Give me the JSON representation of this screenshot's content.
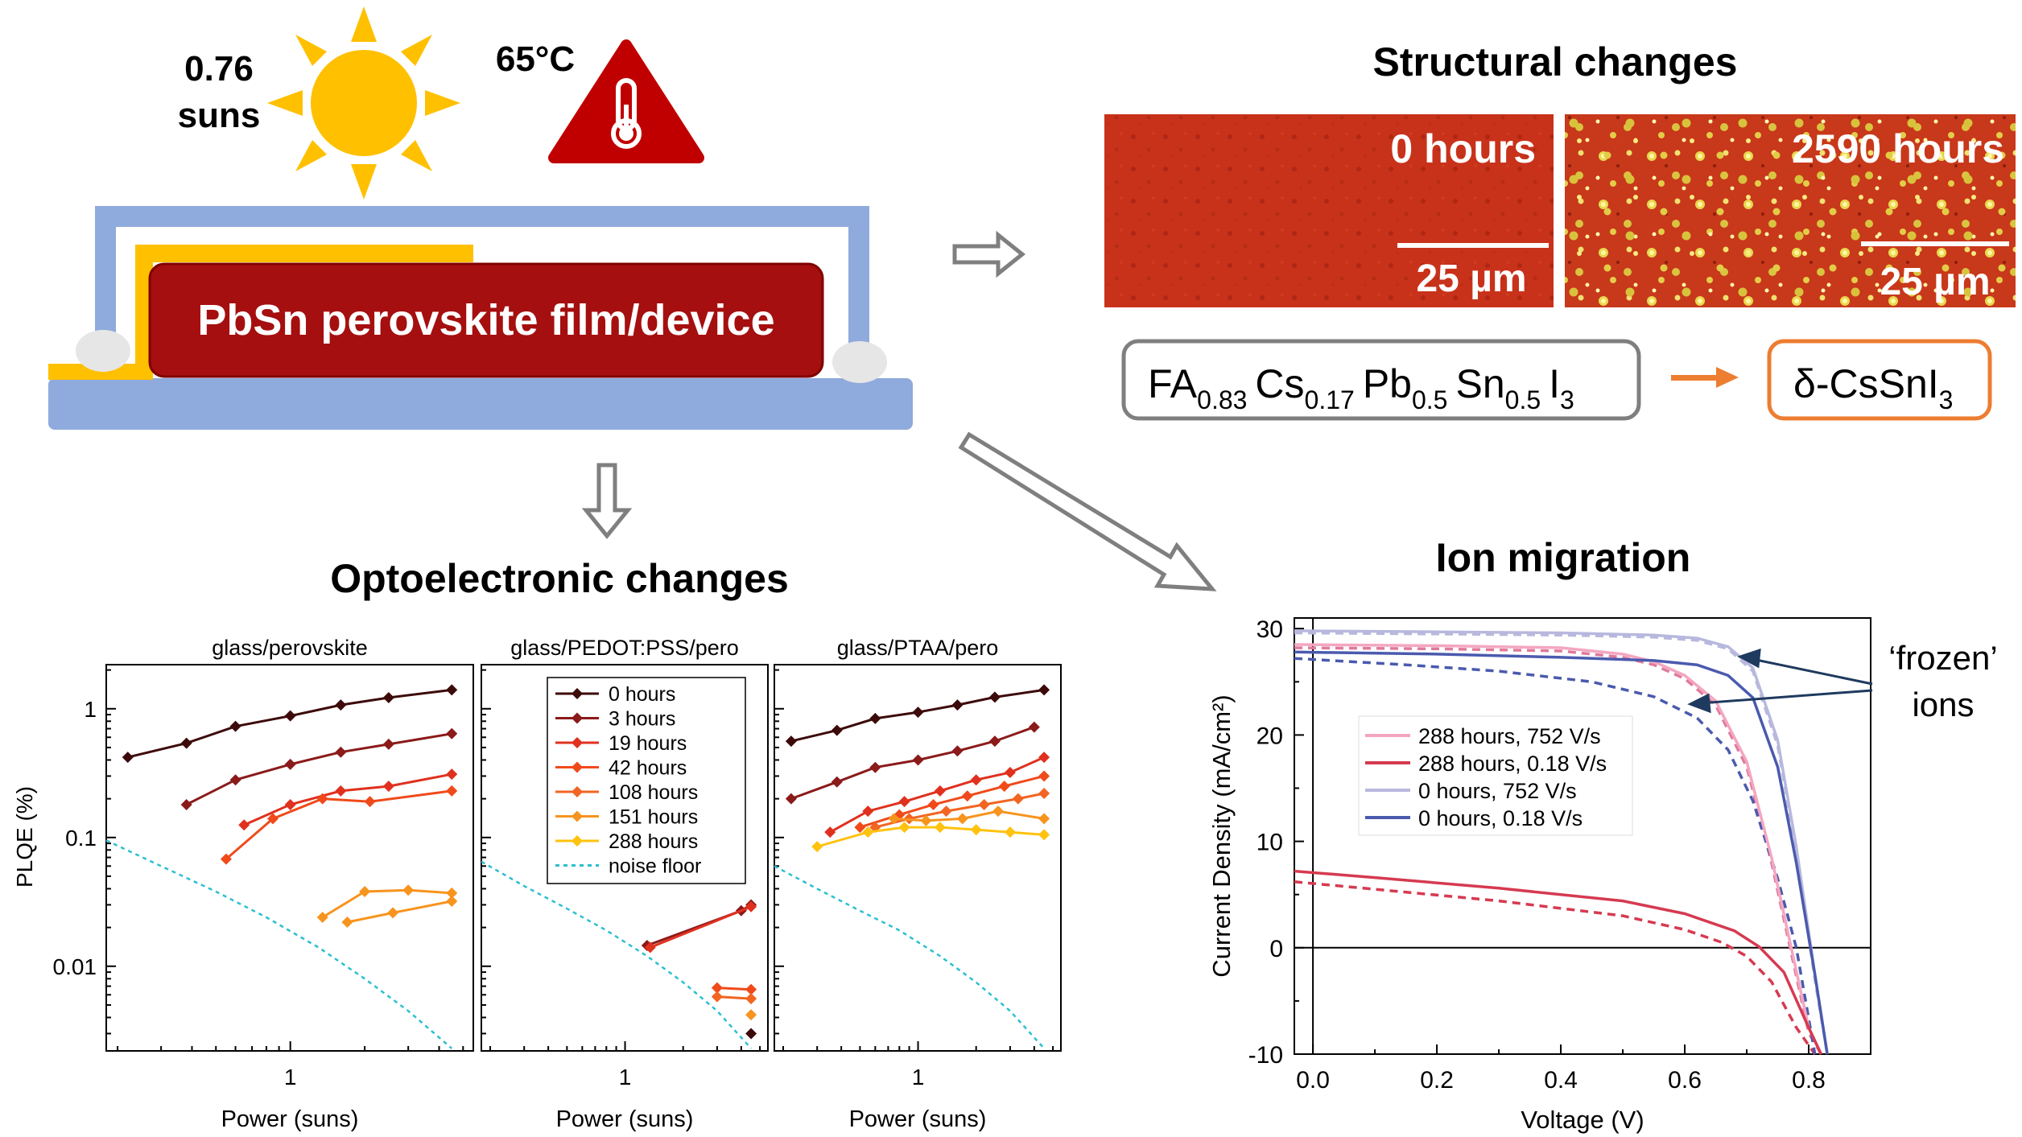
{
  "conditions": {
    "light_value": "0.76",
    "light_unit": "suns",
    "temperature": "65°C",
    "sun_icon": "sun-icon",
    "thermometer_icon": "thermometer-warning-icon"
  },
  "device": {
    "label": "PbSn perovskite film/device"
  },
  "structural": {
    "title": "Structural changes",
    "image_left_label": "0 hours",
    "image_right_label": "2590 hours",
    "scalebar": "25 µm",
    "formula_from": {
      "FA": "FA",
      "FA_sub": "0.83",
      "Cs": "Cs",
      "Cs_sub": "0.17",
      "Pb": "Pb",
      "Pb_sub": "0.5",
      "Sn": "Sn",
      "Sn_sub": "0.5",
      "I": "I",
      "I_sub": "3"
    },
    "formula_to": {
      "pre": "δ-CsSnI",
      "sub": "3"
    },
    "colors": {
      "from_border": "#808080",
      "to_border": "#ED7D31",
      "arrow": "#ED7D31",
      "film": "#C8321A"
    }
  },
  "optoelectronic": {
    "title": "Optoelectronic changes",
    "ylabel": "PLQE (%)",
    "xlabel": "Power (suns)"
  },
  "ion": {
    "title": "Ion migration",
    "annotation_line1": "‘frozen’",
    "annotation_line2": "ions"
  },
  "chart_data": [
    {
      "type": "line",
      "title": "glass/perovskite",
      "xlabel": "Power (suns)",
      "ylabel": "PLQE (%)",
      "xscale": "log",
      "yscale": "log",
      "xlim": [
        0.18,
        5.5
      ],
      "ylim": [
        0.0022,
        2.2
      ],
      "xticks": [
        1
      ],
      "yticks": [
        0.01,
        0.1,
        1
      ],
      "series": [
        {
          "name": "0 hours",
          "color": "#3D0A0A",
          "x": [
            0.22,
            0.38,
            0.6,
            1.0,
            1.6,
            2.5,
            4.5
          ],
          "y": [
            0.42,
            0.54,
            0.73,
            0.88,
            1.07,
            1.22,
            1.4
          ]
        },
        {
          "name": "3 hours",
          "color": "#8B1A1A",
          "x": [
            0.38,
            0.6,
            1.0,
            1.6,
            2.5,
            4.5
          ],
          "y": [
            0.18,
            0.28,
            0.37,
            0.46,
            0.53,
            0.64
          ]
        },
        {
          "name": "19 hours",
          "color": "#E0301E",
          "x": [
            0.65,
            1.0,
            1.6,
            2.5,
            4.5
          ],
          "y": [
            0.125,
            0.18,
            0.23,
            0.25,
            0.31
          ]
        },
        {
          "name": "42 hours",
          "color": "#F04A1A",
          "x": [
            0.55,
            0.85,
            1.35,
            2.1,
            4.5
          ],
          "y": [
            0.068,
            0.14,
            0.2,
            0.19,
            0.23
          ]
        },
        {
          "name": "151 hours",
          "color": "#F7941D",
          "x": [
            1.35,
            2.0,
            3.0,
            4.5
          ],
          "y": [
            0.024,
            0.038,
            0.039,
            0.037
          ]
        },
        {
          "name": "288 hours",
          "color": "#F7941D",
          "x": [
            1.7,
            2.6,
            4.5
          ],
          "y": [
            0.022,
            0.026,
            0.032
          ]
        },
        {
          "name": "noise floor",
          "color": "#2BC0D0",
          "dashed": true,
          "markers": false,
          "x": [
            0.18,
            0.3,
            0.5,
            0.8,
            1.3,
            2.0,
            3.0,
            4.5
          ],
          "y": [
            0.095,
            0.06,
            0.038,
            0.024,
            0.014,
            0.008,
            0.0045,
            0.0023
          ]
        }
      ]
    },
    {
      "type": "line",
      "title": "glass/PEDOT:PSS/pero",
      "xlabel": "Power (suns)",
      "xscale": "log",
      "yscale": "log",
      "xlim": [
        0.18,
        5.5
      ],
      "ylim": [
        0.0022,
        2.2
      ],
      "xticks": [
        1
      ],
      "yticks": [
        0.01,
        0.1,
        1
      ],
      "legend": {
        "placement": "top-right",
        "entries": [
          "0 hours",
          "3 hours",
          "19 hours",
          "42 hours",
          "108 hours",
          "151 hours",
          "288 hours",
          "noise floor"
        ]
      },
      "series": [
        {
          "name": "0 hours",
          "color": "#3D0A0A",
          "x": [
            4.5
          ],
          "y": [
            0.003
          ]
        },
        {
          "name": "3 hours",
          "color": "#8B1A1A",
          "x": [
            1.3,
            4.0,
            4.5
          ],
          "y": [
            0.0145,
            0.027,
            0.03
          ]
        },
        {
          "name": "19 hours",
          "color": "#E0301E",
          "x": [
            1.35,
            4.5
          ],
          "y": [
            0.014,
            0.029
          ]
        },
        {
          "name": "42 hours",
          "color": "#F04A1A",
          "x": [
            3.0,
            4.5
          ],
          "y": [
            0.0068,
            0.0066
          ]
        },
        {
          "name": "108 hours",
          "color": "#F26522",
          "x": [
            3.0,
            4.5
          ],
          "y": [
            0.0058,
            0.0056
          ]
        },
        {
          "name": "151 hours",
          "color": "#F7941D",
          "x": [
            4.5
          ],
          "y": [
            0.0042
          ]
        },
        {
          "name": "288 hours",
          "color": "#FFC20E",
          "x": [],
          "y": []
        },
        {
          "name": "noise floor",
          "color": "#2BC0D0",
          "dashed": true,
          "markers": false,
          "x": [
            0.18,
            0.3,
            0.5,
            0.8,
            1.3,
            2.0,
            3.0,
            4.5
          ],
          "y": [
            0.065,
            0.042,
            0.028,
            0.019,
            0.012,
            0.0075,
            0.0045,
            0.0023
          ]
        }
      ]
    },
    {
      "type": "line",
      "title": "glass/PTAA/pero",
      "xlabel": "Power (suns)",
      "xscale": "log",
      "yscale": "log",
      "xlim": [
        0.18,
        5.5
      ],
      "ylim": [
        0.0022,
        2.2
      ],
      "xticks": [
        1
      ],
      "yticks": [
        0.01,
        0.1,
        1
      ],
      "series": [
        {
          "name": "0 hours",
          "color": "#3D0A0A",
          "x": [
            0.22,
            0.38,
            0.6,
            1.0,
            1.6,
            2.5,
            4.5
          ],
          "y": [
            0.56,
            0.68,
            0.84,
            0.94,
            1.07,
            1.23,
            1.4
          ]
        },
        {
          "name": "3 hours",
          "color": "#8B1A1A",
          "x": [
            0.22,
            0.38,
            0.6,
            1.0,
            1.6,
            2.5,
            4.0
          ],
          "y": [
            0.2,
            0.27,
            0.35,
            0.4,
            0.47,
            0.56,
            0.72
          ]
        },
        {
          "name": "19 hours",
          "color": "#E0301E",
          "x": [
            0.35,
            0.55,
            0.85,
            1.3,
            2.0,
            3.0,
            4.5
          ],
          "y": [
            0.11,
            0.16,
            0.19,
            0.23,
            0.28,
            0.32,
            0.42
          ]
        },
        {
          "name": "42 hours",
          "color": "#F04A1A",
          "x": [
            0.5,
            0.8,
            1.2,
            1.8,
            2.8,
            4.5
          ],
          "y": [
            0.12,
            0.15,
            0.18,
            0.21,
            0.25,
            0.3
          ]
        },
        {
          "name": "108 hours",
          "color": "#F26522",
          "x": [
            0.6,
            0.9,
            1.4,
            2.2,
            3.3,
            4.5
          ],
          "y": [
            0.12,
            0.14,
            0.16,
            0.18,
            0.2,
            0.22
          ]
        },
        {
          "name": "151 hours",
          "color": "#F7941D",
          "x": [
            0.75,
            1.1,
            1.7,
            2.6,
            4.5
          ],
          "y": [
            0.14,
            0.135,
            0.14,
            0.16,
            0.14
          ]
        },
        {
          "name": "288 hours",
          "color": "#FFC20E",
          "x": [
            0.3,
            0.55,
            0.85,
            1.3,
            2.0,
            3.0,
            4.5
          ],
          "y": [
            0.085,
            0.11,
            0.12,
            0.12,
            0.115,
            0.11,
            0.105
          ]
        },
        {
          "name": "noise floor",
          "color": "#2BC0D0",
          "dashed": true,
          "markers": false,
          "x": [
            0.18,
            0.3,
            0.5,
            0.8,
            1.3,
            2.0,
            3.0,
            4.5
          ],
          "y": [
            0.06,
            0.04,
            0.027,
            0.019,
            0.012,
            0.0075,
            0.0045,
            0.0023
          ]
        }
      ]
    },
    {
      "type": "line",
      "title": "",
      "xlabel": "Voltage (V)",
      "ylabel": "Current Density (mA/cm²)",
      "xlim": [
        -0.03,
        0.9
      ],
      "ylim": [
        -10,
        31
      ],
      "xticks": [
        0.0,
        0.2,
        0.4,
        0.6,
        0.8
      ],
      "yticks": [
        -10,
        0,
        10,
        20,
        30
      ],
      "legend": {
        "placement": "center-left",
        "entries": [
          "288 hours, 752 V/s",
          "288 hours, 0.18 V/s",
          "0 hours, 752 V/s",
          "0 hours, 0.18 V/s"
        ]
      },
      "series": [
        {
          "name": "288 hours, 752 V/s",
          "color": "#F4A6C0",
          "x": [
            -0.03,
            0.2,
            0.4,
            0.5,
            0.55,
            0.6,
            0.65,
            0.7,
            0.74,
            0.77,
            0.8,
            0.82
          ],
          "y": [
            28.5,
            28.4,
            28.2,
            27.6,
            26.9,
            25.6,
            23.2,
            17.5,
            8.5,
            0.5,
            -7.5,
            -10
          ]
        },
        {
          "name": "288 hours, 0.18 V/s",
          "color": "#D63A50",
          "x": [
            -0.03,
            0.1,
            0.3,
            0.5,
            0.6,
            0.68,
            0.72,
            0.76,
            0.8,
            0.82
          ],
          "y": [
            7.2,
            6.6,
            5.6,
            4.4,
            3.2,
            1.6,
            0.1,
            -2.3,
            -7.5,
            -10
          ]
        },
        {
          "name": "0 hours, 752 V/s",
          "color": "#B8B8DE",
          "x": [
            -0.03,
            0.2,
            0.4,
            0.55,
            0.62,
            0.67,
            0.71,
            0.75,
            0.78,
            0.81,
            0.83
          ],
          "y": [
            29.8,
            29.7,
            29.6,
            29.4,
            29.1,
            28.3,
            26.3,
            19.5,
            9.5,
            -2.5,
            -10
          ]
        },
        {
          "name": "0 hours, 0.18 V/s",
          "color": "#4A5AAE",
          "x": [
            -0.03,
            0.2,
            0.4,
            0.55,
            0.62,
            0.67,
            0.71,
            0.75,
            0.78,
            0.81,
            0.83
          ],
          "y": [
            27.8,
            27.6,
            27.3,
            27.0,
            26.6,
            25.6,
            23.5,
            17.0,
            8.0,
            -2.5,
            -10
          ]
        }
      ],
      "dashed_series": [
        {
          "name": "288 hours, 752 V/s (reverse)",
          "color": "#E07A9A",
          "x": [
            -0.03,
            0.2,
            0.4,
            0.5,
            0.55,
            0.6,
            0.65,
            0.7,
            0.74,
            0.77,
            0.8,
            0.82
          ],
          "y": [
            28.2,
            28.1,
            27.9,
            27.3,
            26.6,
            25.3,
            22.8,
            17.0,
            8.0,
            0.0,
            -8.0,
            -10
          ]
        },
        {
          "name": "288 hours, 0.18 V/s (reverse)",
          "color": "#D63A50",
          "x": [
            -0.03,
            0.1,
            0.3,
            0.5,
            0.6,
            0.66,
            0.7,
            0.74,
            0.78,
            0.81
          ],
          "y": [
            6.2,
            5.5,
            4.4,
            3.0,
            1.7,
            0.5,
            -0.8,
            -3.2,
            -7.5,
            -10
          ]
        },
        {
          "name": "0 hours, 752 V/s (reverse)",
          "color": "#B8B8DE",
          "x": [
            -0.03,
            0.2,
            0.4,
            0.55,
            0.62,
            0.67,
            0.71,
            0.75,
            0.78,
            0.81,
            0.83
          ],
          "y": [
            29.6,
            29.5,
            29.4,
            29.2,
            28.9,
            28.1,
            26.0,
            19.0,
            9.0,
            -3.0,
            -10
          ]
        },
        {
          "name": "0 hours, 0.18 V/s (reverse)",
          "color": "#4A5AAE",
          "x": [
            -0.03,
            0.15,
            0.3,
            0.45,
            0.55,
            0.62,
            0.67,
            0.71,
            0.75,
            0.78,
            0.81
          ],
          "y": [
            27.2,
            26.6,
            26.0,
            25.0,
            23.6,
            21.6,
            18.6,
            13.8,
            6.5,
            0.0,
            -10
          ]
        }
      ]
    }
  ]
}
